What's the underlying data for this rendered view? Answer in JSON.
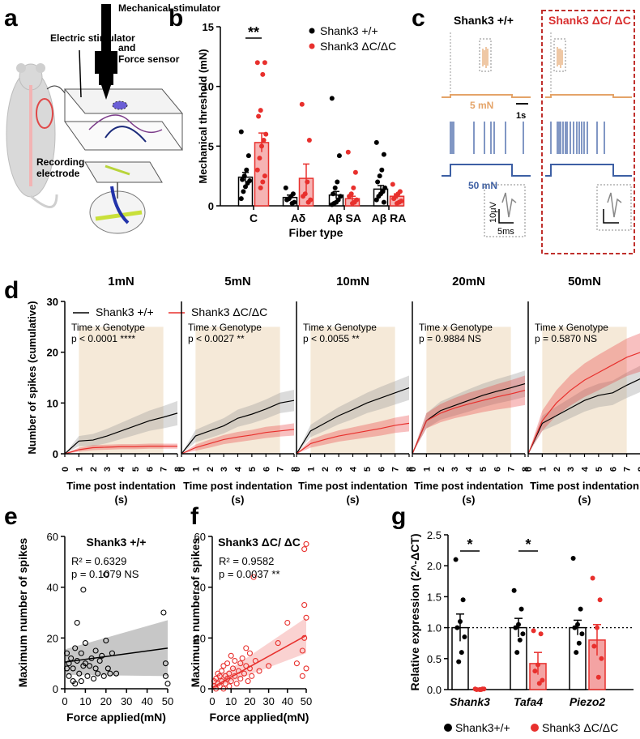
{
  "colors": {
    "wt": "#000000",
    "mut": "#e8302d",
    "orange": "#e4a469",
    "blue": "#3d5fa4",
    "shade": "#f5e9d8",
    "gridline": "#000000"
  },
  "panels": {
    "a": "a",
    "b": "b",
    "c": "c",
    "d": "d",
    "e": "e",
    "f": "f",
    "g": "g"
  },
  "panel_a": {
    "labels": [
      "Electric stimulator",
      "Mechanical stimulator",
      "and",
      "Force sensor",
      "Recording",
      "electrode"
    ]
  },
  "panel_c": {
    "wt_title": "Shank3 +/+",
    "mut_title": "Shank3 ΔC/ ΔC",
    "force_low": "5 mN",
    "force_high": "50 mN",
    "time_scale": "1s",
    "volt_scale": "10μV",
    "spike_scale": "5ms"
  },
  "chart_data": [
    {
      "id": "b",
      "type": "bar",
      "title": "",
      "ylabel": "Mechanical threshold (mN)",
      "xlabel": "Fiber type",
      "categories": [
        "C",
        "Aδ",
        "Aβ SA",
        "Aβ RA"
      ],
      "ylim": [
        0,
        15
      ],
      "yticks": [
        0,
        5,
        10,
        15
      ],
      "legend": [
        "Shank3 +/+",
        "Shank3 ΔC/ΔC"
      ],
      "significance": [
        "**",
        "",
        "",
        ""
      ],
      "series": [
        {
          "name": "Shank3 +/+",
          "values": [
            2.4,
            0.7,
            0.9,
            1.4
          ],
          "sem": [
            0.4,
            0.2,
            0.3,
            0.3
          ],
          "points": [
            [
              6.2,
              4.2,
              3,
              2.5,
              2.2,
              2.1,
              1.9,
              1.6,
              1.2,
              0.6
            ],
            [
              1.5,
              1,
              0.8,
              0.6,
              0.5,
              0.3,
              0.2
            ],
            [
              9,
              4.2,
              2,
              1.5,
              1,
              0.8,
              0.5,
              0.3,
              0.2,
              0.1
            ],
            [
              5.3,
              4.3,
              3,
              2.5,
              2,
              1.5,
              1.2,
              1,
              0.8,
              0.5,
              0.3
            ]
          ]
        },
        {
          "name": "Shank3 ΔC/ΔC",
          "values": [
            5.3,
            2.3,
            0.6,
            0.8
          ],
          "sem": [
            0.8,
            1.2,
            0.2,
            0.2
          ],
          "points": [
            [
              12,
              12,
              11,
              8,
              7.5,
              6,
              5.5,
              5,
              4,
              3,
              2.5,
              2,
              1.5
            ],
            [
              8.5,
              5.5,
              2,
              1,
              0.8,
              0.5,
              0.3
            ],
            [
              4.5,
              2.8,
              1.5,
              1,
              0.8,
              0.5,
              0.3,
              0.2
            ],
            [
              1.8,
              1.2,
              1,
              0.8,
              0.6,
              0.4,
              0.3,
              0.2
            ]
          ]
        }
      ]
    },
    {
      "id": "d",
      "type": "line",
      "ylabel": "Number of spikes (cumulative)",
      "xlabel": "Time post indentation",
      "xunit": "(s)",
      "x": [
        0,
        1,
        2,
        3,
        4,
        5,
        6,
        7,
        8
      ],
      "ylim": [
        0,
        30
      ],
      "yticks": [
        0,
        10,
        20,
        30
      ],
      "legend": [
        "Shank3 +/+",
        "Shank3 ΔC/ΔC"
      ],
      "stim_window": [
        1,
        7
      ],
      "subplots": [
        {
          "title": "1mN",
          "stat_label": "Time x Genotype",
          "stat": "p < 0.0001 ****",
          "wt": [
            0,
            2.5,
            2.7,
            3.5,
            4.5,
            5.5,
            6.5,
            7.2,
            8
          ],
          "wt_err": [
            0,
            1,
            1.2,
            1.4,
            1.6,
            1.8,
            2,
            2.2,
            2.4
          ],
          "mut": [
            0,
            0.8,
            1.2,
            1.3,
            1.4,
            1.4,
            1.5,
            1.5,
            1.5
          ],
          "mut_err": [
            0,
            0.4,
            0.5,
            0.5,
            0.5,
            0.5,
            0.5,
            0.5,
            0.5
          ]
        },
        {
          "title": "5mN",
          "stat_label": "Time x Genotype",
          "stat": "p < 0.0027 **",
          "wt": [
            0,
            3.5,
            4.5,
            5.5,
            7,
            7.8,
            8.8,
            10,
            10.5
          ],
          "wt_err": [
            0,
            1.2,
            1.4,
            1.5,
            1.7,
            1.8,
            1.9,
            2,
            2.1
          ],
          "mut": [
            0,
            1.2,
            2,
            2.8,
            3.3,
            3.7,
            4.2,
            4.5,
            4.8
          ],
          "mut_err": [
            0,
            0.6,
            0.8,
            0.9,
            1,
            1,
            1.1,
            1.1,
            1.2
          ]
        },
        {
          "title": "10mN",
          "stat_label": "Time x Genotype",
          "stat": "p < 0.0055 **",
          "wt": [
            0,
            4.5,
            6,
            7.5,
            8.7,
            10,
            11,
            12,
            13
          ],
          "wt_err": [
            0,
            1.2,
            1.5,
            1.7,
            1.9,
            2,
            2.2,
            2.3,
            2.4
          ],
          "mut": [
            0,
            2,
            2.8,
            3.5,
            4,
            4.5,
            5,
            5.6,
            6
          ],
          "mut_err": [
            0,
            0.8,
            1,
            1.1,
            1.2,
            1.3,
            1.4,
            1.5,
            1.6
          ]
        },
        {
          "title": "20mN",
          "stat_label": "Time x Genotype",
          "stat": "p = 0.9884 NS",
          "wt": [
            0,
            6.5,
            8.5,
            9.5,
            10.5,
            11.5,
            12.3,
            13,
            13.8
          ],
          "wt_err": [
            0,
            1.5,
            1.8,
            2,
            2.2,
            2.3,
            2.4,
            2.5,
            2.6
          ],
          "mut": [
            0,
            6.5,
            8,
            9,
            9.8,
            10.5,
            11.2,
            11.8,
            12.5
          ],
          "mut_err": [
            0,
            1.5,
            1.8,
            2,
            2.2,
            2.3,
            2.5,
            2.7,
            2.9
          ]
        },
        {
          "title": "50mN",
          "stat_label": "Time x Genotype",
          "stat": "p = 0.5870 NS",
          "wt": [
            0,
            6,
            7.5,
            9,
            10.5,
            11.5,
            12,
            13.5,
            14.8
          ],
          "wt_err": [
            0,
            1.5,
            1.8,
            2,
            2.2,
            2.3,
            2.4,
            2.5,
            2.6
          ],
          "mut": [
            0,
            6.5,
            10,
            12.5,
            14.5,
            16,
            17.5,
            19,
            20
          ],
          "mut_err": [
            0,
            2,
            2.5,
            3,
            3.3,
            3.5,
            3.6,
            3.7,
            3.8
          ]
        }
      ]
    },
    {
      "id": "e",
      "type": "scatter",
      "title": "Shank3 +/+",
      "xlabel": "Force applied(mN)",
      "ylabel": "Maximum number of spikes",
      "xlim": [
        0,
        50
      ],
      "ylim": [
        0,
        60
      ],
      "xticks": [
        0,
        10,
        20,
        30,
        40,
        50
      ],
      "yticks": [
        0,
        20,
        40,
        60
      ],
      "r2_label": "R² = 0.6329",
      "p_label": "p = 0.1079 NS",
      "fit": {
        "x": [
          0,
          50
        ],
        "y": [
          10.5,
          16
        ],
        "ci_low": [
          5.5,
          5
        ],
        "ci_high": [
          15.5,
          27
        ]
      },
      "points": [
        [
          1,
          14
        ],
        [
          1,
          8
        ],
        [
          2,
          5
        ],
        [
          2,
          10
        ],
        [
          3,
          12
        ],
        [
          4,
          3
        ],
        [
          4,
          8
        ],
        [
          5,
          16
        ],
        [
          5,
          2
        ],
        [
          6,
          26
        ],
        [
          6,
          11
        ],
        [
          7,
          6
        ],
        [
          8,
          14
        ],
        [
          8,
          3
        ],
        [
          9,
          39
        ],
        [
          9,
          9
        ],
        [
          10,
          18
        ],
        [
          10,
          10
        ],
        [
          11,
          5
        ],
        [
          12,
          9
        ],
        [
          13,
          12
        ],
        [
          14,
          4
        ],
        [
          15,
          15
        ],
        [
          15,
          8
        ],
        [
          16,
          6
        ],
        [
          17,
          11
        ],
        [
          18,
          13
        ],
        [
          19,
          5
        ],
        [
          20,
          19
        ],
        [
          20,
          45
        ],
        [
          21,
          8
        ],
        [
          22,
          6
        ],
        [
          23,
          14
        ],
        [
          25,
          6
        ],
        [
          48,
          30
        ],
        [
          49,
          5
        ],
        [
          49,
          10
        ],
        [
          50,
          2
        ]
      ]
    },
    {
      "id": "f",
      "type": "scatter",
      "title": "Shank3 ΔC/ ΔC",
      "xlabel": "Force applied(mN)",
      "ylabel": "Maximum number of spikes",
      "xlim": [
        0,
        50
      ],
      "ylim": [
        0,
        60
      ],
      "xticks": [
        0,
        10,
        20,
        30,
        40,
        50
      ],
      "yticks": [
        0,
        20,
        40,
        60
      ],
      "r2_label": "R² = 0.9582",
      "p_label": "p = 0.0037 **",
      "fit": {
        "x": [
          0,
          50
        ],
        "y": [
          0.5,
          21
        ],
        "ci_low": [
          -2,
          14
        ],
        "ci_high": [
          3,
          28
        ]
      },
      "points": [
        [
          1,
          1
        ],
        [
          1,
          3
        ],
        [
          2,
          0
        ],
        [
          2,
          4
        ],
        [
          3,
          2
        ],
        [
          3,
          6
        ],
        [
          4,
          1
        ],
        [
          4,
          5
        ],
        [
          5,
          3
        ],
        [
          5,
          7
        ],
        [
          6,
          0
        ],
        [
          6,
          9
        ],
        [
          7,
          2
        ],
        [
          7,
          5
        ],
        [
          8,
          4
        ],
        [
          8,
          10
        ],
        [
          9,
          1
        ],
        [
          9,
          6
        ],
        [
          10,
          3
        ],
        [
          10,
          13
        ],
        [
          11,
          8
        ],
        [
          12,
          5
        ],
        [
          12,
          11
        ],
        [
          13,
          2
        ],
        [
          14,
          7
        ],
        [
          15,
          10
        ],
        [
          15,
          4
        ],
        [
          16,
          12
        ],
        [
          17,
          6
        ],
        [
          18,
          9
        ],
        [
          18,
          16
        ],
        [
          19,
          3
        ],
        [
          20,
          14
        ],
        [
          20,
          8
        ],
        [
          21,
          5
        ],
        [
          22,
          44
        ],
        [
          23,
          11
        ],
        [
          25,
          7
        ],
        [
          30,
          9
        ],
        [
          35,
          18
        ],
        [
          40,
          26
        ],
        [
          45,
          10
        ],
        [
          48,
          5
        ],
        [
          48,
          15
        ],
        [
          49,
          33
        ],
        [
          49,
          55
        ],
        [
          50,
          57
        ],
        [
          50,
          28
        ],
        [
          50,
          8
        ],
        [
          49,
          20
        ]
      ]
    },
    {
      "id": "g",
      "type": "bar",
      "ylabel": "Relative expression (2^-ΔCT)",
      "categories": [
        "Shank3",
        "Tafa4",
        "Piezo2"
      ],
      "ylim": [
        0,
        2.5
      ],
      "yticks": [
        0.0,
        0.5,
        1.0,
        1.5,
        2.0,
        2.5
      ],
      "ytick_labels": [
        "0.0",
        "0.5",
        "1.0",
        "1.5",
        "2.0",
        "2.5"
      ],
      "reference_line": 1.0,
      "significance": [
        "*",
        "*",
        ""
      ],
      "legend": [
        "Shank3+/+",
        "Shank3 ΔC/ΔC"
      ],
      "series": [
        {
          "name": "Shank3+/+",
          "values": [
            1.0,
            1.0,
            1.0
          ],
          "sem": [
            0.22,
            0.15,
            0.12
          ],
          "points": [
            [
              2.1,
              1.45,
              1.1,
              1.0,
              0.85,
              0.6,
              0.45
            ],
            [
              1.6,
              1.3,
              1.05,
              1.0,
              0.9,
              0.8,
              0.6
            ],
            [
              2.12,
              1.3,
              1.05,
              1.0,
              0.9,
              0.75,
              0.6
            ]
          ]
        },
        {
          "name": "Shank3 ΔC/ΔC",
          "values": [
            0.0,
            0.42,
            0.8
          ],
          "sem": [
            0.02,
            0.18,
            0.25
          ],
          "points": [
            [
              0.01,
              0.01,
              0.0,
              0.0,
              0.01,
              0.0
            ],
            [
              0.95,
              0.9,
              0.4,
              0.3,
              0.15,
              0.1
            ],
            [
              1.8,
              1.45,
              1.0,
              0.7,
              0.5,
              0.2
            ]
          ]
        }
      ]
    }
  ]
}
